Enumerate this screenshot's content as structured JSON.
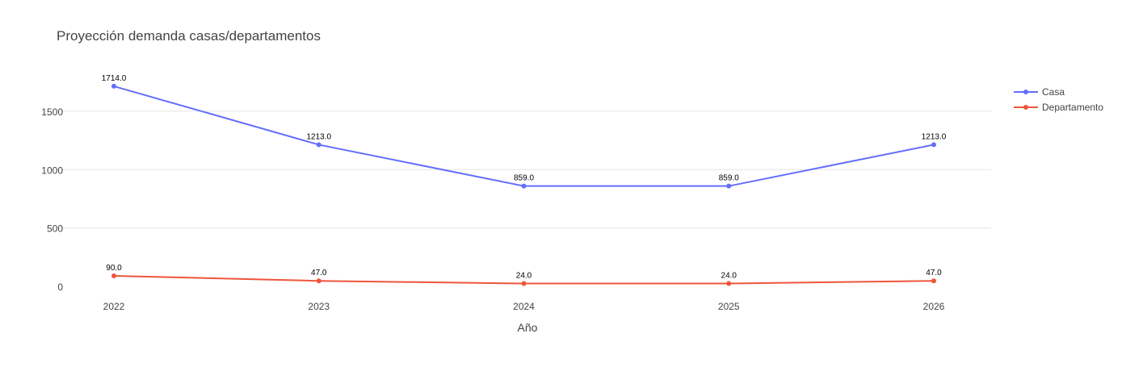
{
  "chart_data": {
    "type": "line",
    "title": "Proyección demanda casas/departamentos",
    "xlabel": "Año",
    "ylabel": "",
    "x": [
      2022,
      2023,
      2024,
      2025,
      2026
    ],
    "x_ticks": [
      "2022",
      "2023",
      "2024",
      "2025",
      "2026"
    ],
    "y_ticks": [
      0,
      500,
      1000,
      1500
    ],
    "ylim": [
      0,
      1900
    ],
    "grid": true,
    "legend_position": "top-right",
    "series": [
      {
        "name": "Casa",
        "color": "#636efa",
        "values": [
          1714,
          1213,
          859,
          859,
          1213
        ],
        "labels": [
          "1714.0",
          "1213.0",
          "859.0",
          "859.0",
          "1213.0"
        ]
      },
      {
        "name": "Departamento",
        "color": "#ef553b",
        "values": [
          90,
          47,
          24,
          24,
          47
        ],
        "labels": [
          "90.0",
          "47.0",
          "24.0",
          "24.0",
          "47.0"
        ]
      }
    ]
  }
}
